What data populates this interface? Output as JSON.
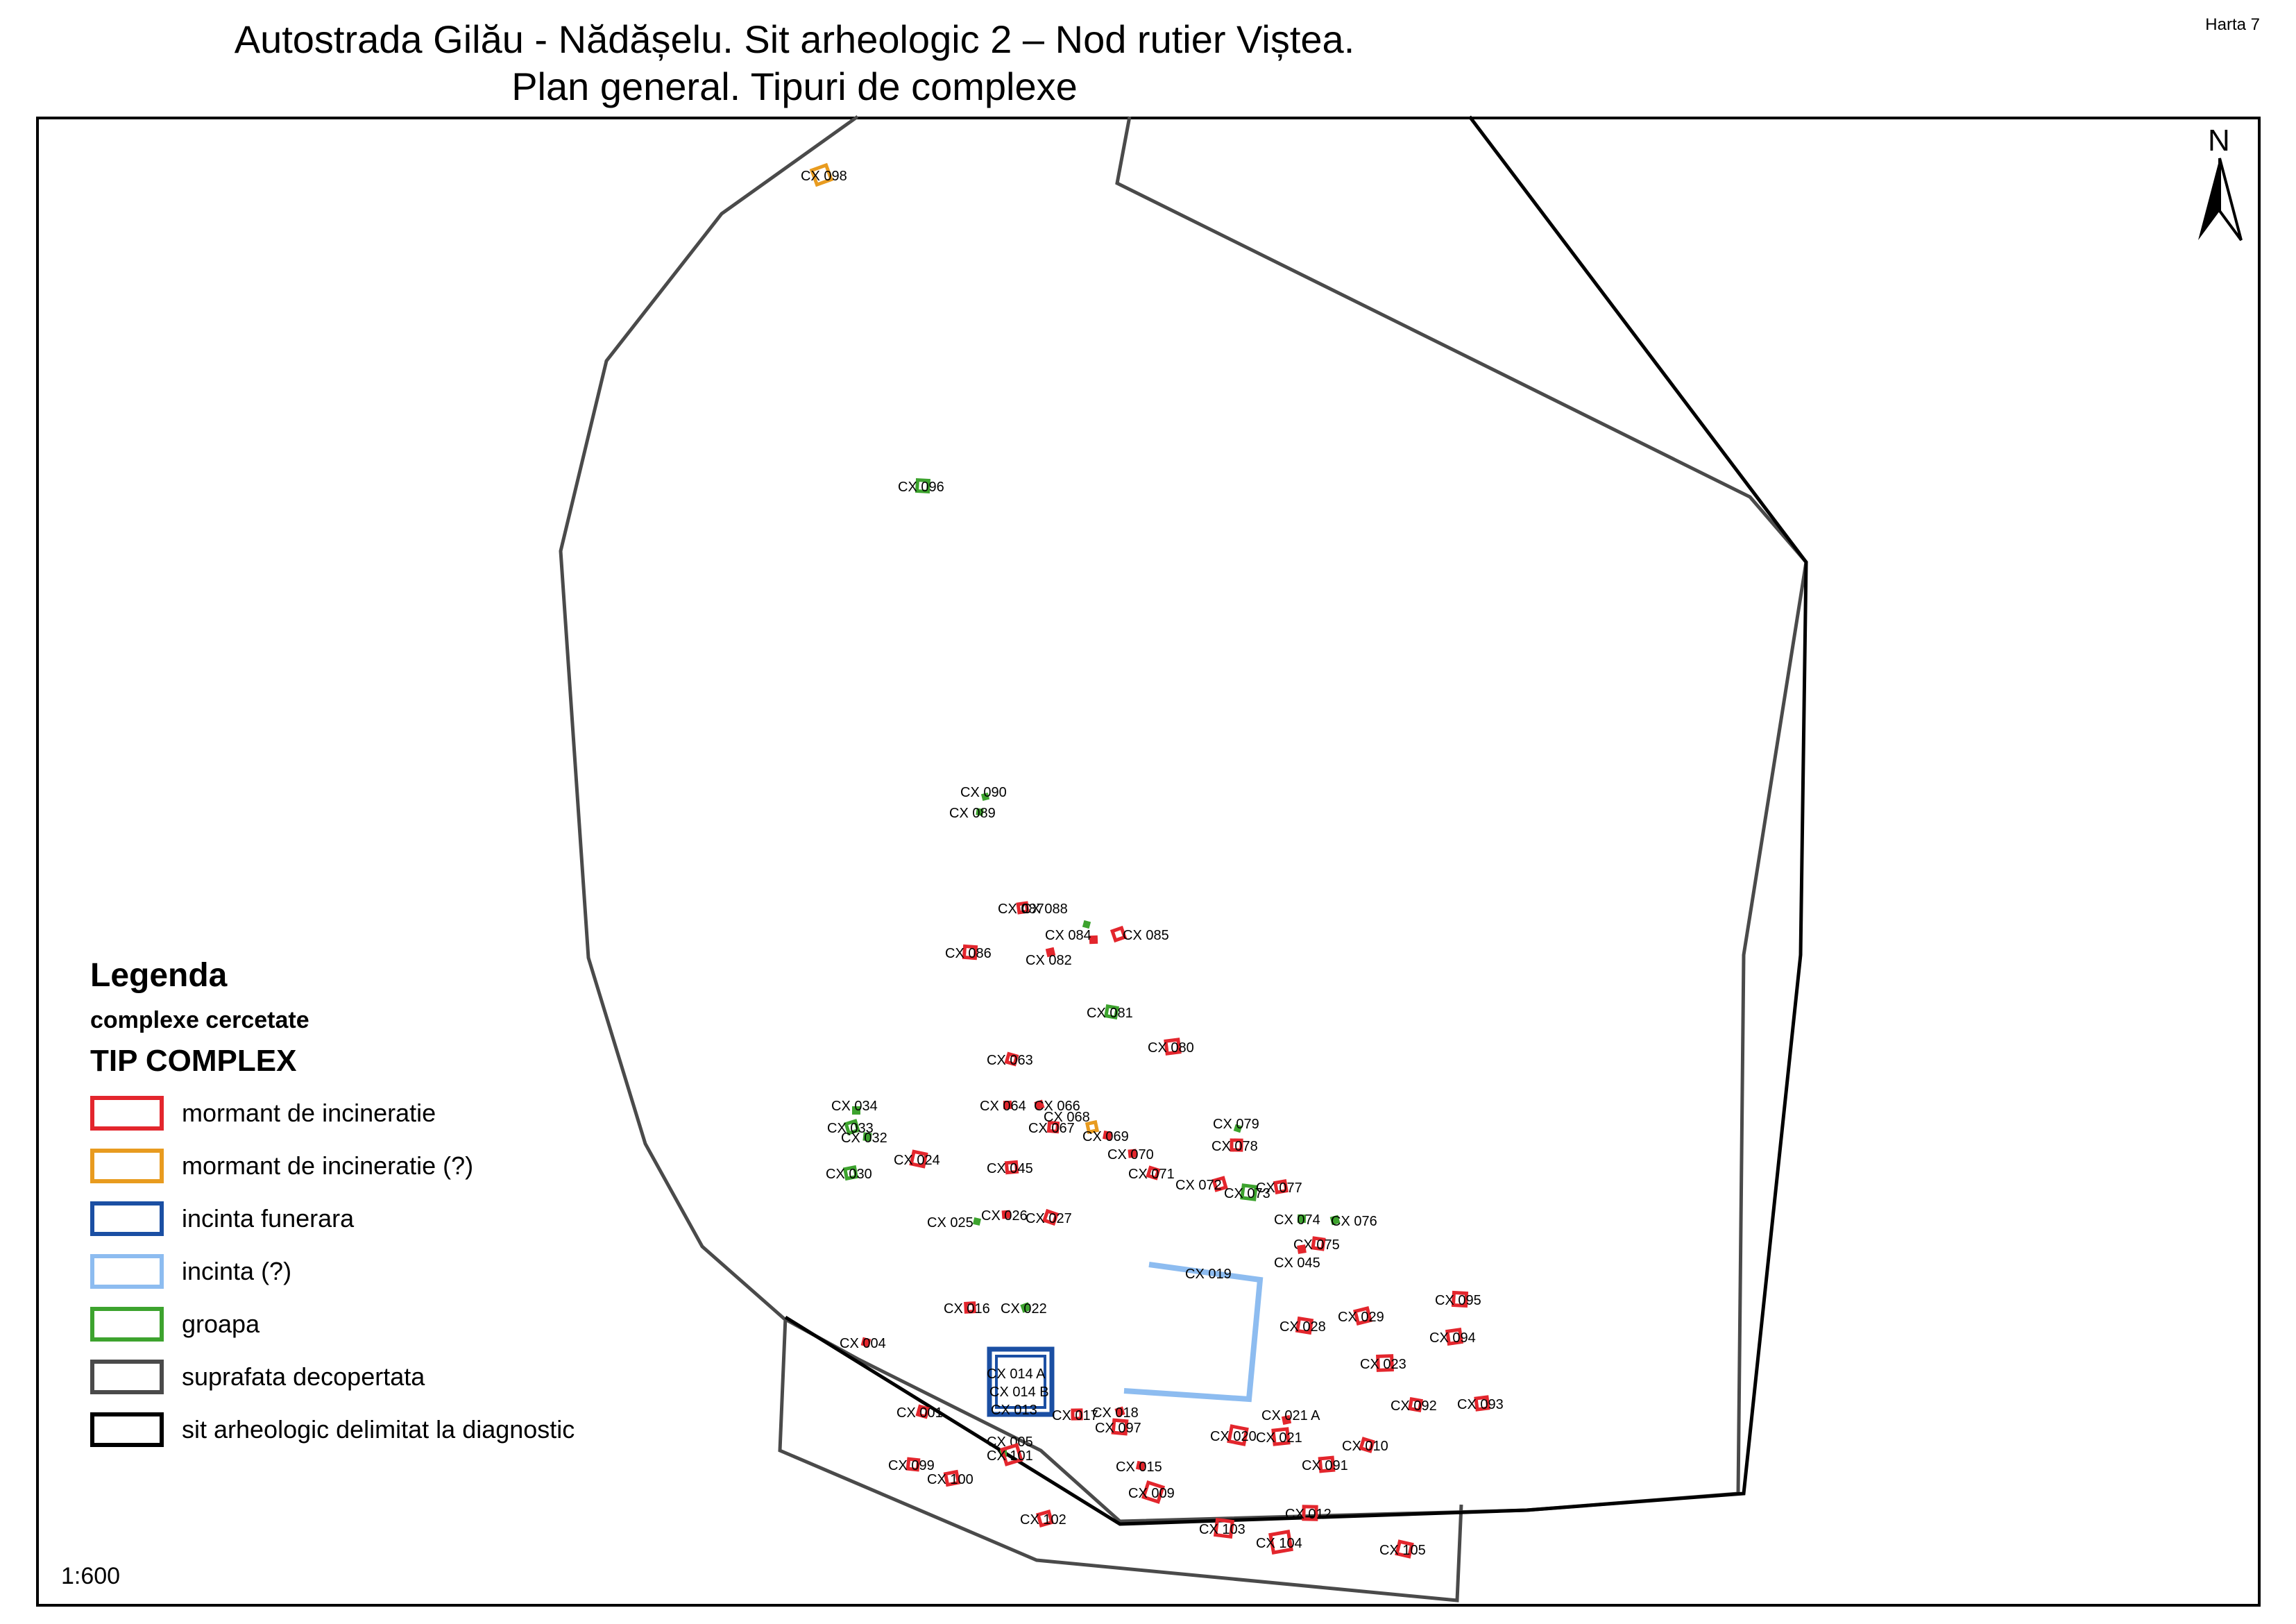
{
  "title_line1": "Autostrada Gilău - Nădășelu. Sit arheologic 2 – Nod rutier Viștea.",
  "title_line2": "Plan general. Tipuri de complexe",
  "sheet_label": "Harta 7",
  "north_label": "N",
  "scale": "1:600",
  "legend": {
    "title": "Legenda",
    "subtitle": "complexe cercetate",
    "heading": "TIP COMPLEX",
    "items": [
      {
        "label": "mormant de incineratie",
        "color": "#e3262d"
      },
      {
        "label": "mormant de incineratie (?)",
        "color": "#e89b1f"
      },
      {
        "label": "incinta funerara",
        "color": "#1b4fa3"
      },
      {
        "label": "incinta (?)",
        "color": "#8dbcf0"
      },
      {
        "label": "groapa",
        "color": "#3da32e"
      },
      {
        "label": "suprafata decopertata",
        "color": "#4a4a4a"
      },
      {
        "label": "sit arheologic delimitat la diagnostic",
        "color": "#000000"
      }
    ]
  },
  "features": [
    {
      "label": "CX 098",
      "type": "mormant de incineratie (?)"
    },
    {
      "label": "CX 096",
      "type": "groapa"
    },
    {
      "label": "CX 090",
      "type": "groapa"
    },
    {
      "label": "CX 089",
      "type": "groapa"
    },
    {
      "label": "CX 087",
      "type": "mormant de incineratie"
    },
    {
      "label": "CX 088",
      "type": "groapa"
    },
    {
      "label": "CX 084",
      "type": "mormant de incineratie"
    },
    {
      "label": "CX 085",
      "type": "mormant de incineratie"
    },
    {
      "label": "CX 086",
      "type": "mormant de incineratie"
    },
    {
      "label": "CX 082",
      "type": "mormant de incineratie"
    },
    {
      "label": "CX 081",
      "type": "groapa"
    },
    {
      "label": "CX 080",
      "type": "mormant de incineratie"
    },
    {
      "label": "CX 063",
      "type": "mormant de incineratie"
    },
    {
      "label": "CX 064",
      "type": "mormant de incineratie"
    },
    {
      "label": "CX 066",
      "type": "mormant de incineratie"
    },
    {
      "label": "CX 067",
      "type": "mormant de incineratie"
    },
    {
      "label": "CX 068",
      "type": "mormant de incineratie (?)"
    },
    {
      "label": "CX 069",
      "type": "mormant de incineratie"
    },
    {
      "label": "CX 070",
      "type": "mormant de incineratie"
    },
    {
      "label": "CX 071",
      "type": "mormant de incineratie"
    },
    {
      "label": "CX 034",
      "type": "groapa"
    },
    {
      "label": "CX 033",
      "type": "groapa"
    },
    {
      "label": "CX 032",
      "type": "groapa"
    },
    {
      "label": "CX 030",
      "type": "groapa"
    },
    {
      "label": "CX 024",
      "type": "mormant de incineratie"
    },
    {
      "label": "CX 045",
      "type": "mormant de incineratie"
    },
    {
      "label": "CX 079",
      "type": "groapa"
    },
    {
      "label": "CX 078",
      "type": "mormant de incineratie"
    },
    {
      "label": "CX 072",
      "type": "mormant de incineratie"
    },
    {
      "label": "CX 073",
      "type": "groapa"
    },
    {
      "label": "CX 077",
      "type": "mormant de incineratie"
    },
    {
      "label": "CX 025",
      "type": "groapa"
    },
    {
      "label": "CX 026",
      "type": "mormant de incineratie"
    },
    {
      "label": "CX 027",
      "type": "mormant de incineratie"
    },
    {
      "label": "CX 074",
      "type": "groapa"
    },
    {
      "label": "CX 076",
      "type": "groapa"
    },
    {
      "label": "CX 075",
      "type": "mormant de incineratie"
    },
    {
      "label": "CX 045",
      "type": "mormant de incineratie"
    },
    {
      "label": "CX 019",
      "type": "incinta (?)"
    },
    {
      "label": "CX 016",
      "type": "mormant de incineratie"
    },
    {
      "label": "CX 022",
      "type": "groapa"
    },
    {
      "label": "CX 095",
      "type": "mormant de incineratie"
    },
    {
      "label": "CX 029",
      "type": "mormant de incineratie"
    },
    {
      "label": "CX 028",
      "type": "mormant de incineratie"
    },
    {
      "label": "CX 094",
      "type": "mormant de incineratie"
    },
    {
      "label": "CX 004",
      "type": "mormant de incineratie"
    },
    {
      "label": "CX 023",
      "type": "mormant de incineratie"
    },
    {
      "label": "CX 014 A",
      "type": "incinta funerara"
    },
    {
      "label": "CX 014 B",
      "type": "incinta funerara"
    },
    {
      "label": "CX 013",
      "type": "incinta funerara"
    },
    {
      "label": "CX 092",
      "type": "mormant de incineratie"
    },
    {
      "label": "CX 093",
      "type": "mormant de incineratie"
    },
    {
      "label": "CX 001",
      "type": "mormant de incineratie"
    },
    {
      "label": "CX 017",
      "type": "mormant de incineratie"
    },
    {
      "label": "CX 018",
      "type": "mormant de incineratie"
    },
    {
      "label": "CX 097",
      "type": "mormant de incineratie"
    },
    {
      "label": "CX 021 A",
      "type": "mormant de incineratie"
    },
    {
      "label": "CX 020",
      "type": "mormant de incineratie"
    },
    {
      "label": "CX 021",
      "type": "mormant de incineratie"
    },
    {
      "label": "CX 010",
      "type": "mormant de incineratie"
    },
    {
      "label": "CX 005",
      "type": "groapa"
    },
    {
      "label": "CX 101",
      "type": "mormant de incineratie"
    },
    {
      "label": "CX 099",
      "type": "mormant de incineratie"
    },
    {
      "label": "CX 100",
      "type": "mormant de incineratie"
    },
    {
      "label": "CX 015",
      "type": "mormant de incineratie"
    },
    {
      "label": "CX 091",
      "type": "mormant de incineratie"
    },
    {
      "label": "CX 009",
      "type": "mormant de incineratie"
    },
    {
      "label": "CX 012",
      "type": "mormant de incineratie"
    },
    {
      "label": "CX 102",
      "type": "mormant de incineratie"
    },
    {
      "label": "CX 103",
      "type": "mormant de incineratie"
    },
    {
      "label": "CX 104",
      "type": "mormant de incineratie"
    },
    {
      "label": "CX 105",
      "type": "mormant de incineratie"
    }
  ]
}
